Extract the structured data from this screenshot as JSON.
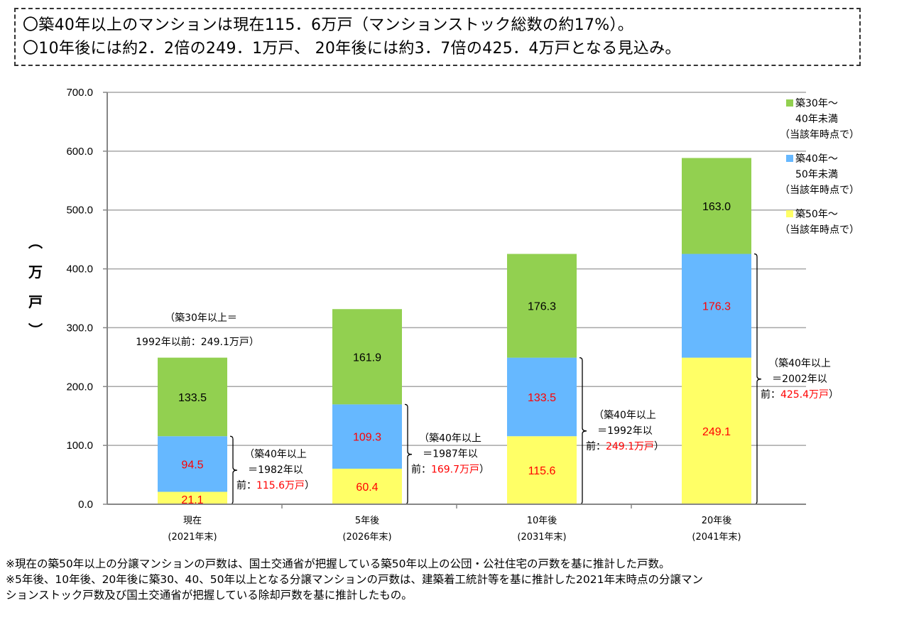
{
  "headline": {
    "line1": "〇築40年以上のマンションは現在115．6万戸（マンションストック総数の約17%）。",
    "line2": "〇10年後には約2．2倍の249．1万戸、 20年後には約3．7倍の425．4万戸となる見込み。"
  },
  "chart_data": {
    "type": "bar",
    "stacked": true,
    "ylabel": "（万戸）",
    "ylabel_chars": [
      "︵",
      "万",
      "戸",
      "︶"
    ],
    "ylim": [
      0,
      700
    ],
    "yticks": [
      "0.0",
      "100.0",
      "200.0",
      "300.0",
      "400.0",
      "500.0",
      "600.0",
      "700.0"
    ],
    "ytick_values": [
      0,
      100,
      200,
      300,
      400,
      500,
      600,
      700
    ],
    "grid": true,
    "categories": [
      {
        "line1": "現在",
        "line2": "(2021年末)"
      },
      {
        "line1": "5年後",
        "line2": "(2026年末)"
      },
      {
        "line1": "10年後",
        "line2": "(2031年末)"
      },
      {
        "line1": "20年後",
        "line2": "(2041年末)"
      }
    ],
    "series": [
      {
        "name": "築50年～（当該年時点で）",
        "color": "#ffff66",
        "label_color": "#ff0000",
        "values": [
          21.1,
          60.4,
          115.6,
          249.1
        ],
        "labels": [
          "21.1",
          "60.4",
          "115.6",
          "249.1"
        ]
      },
      {
        "name": "築40年～50年未満（当該年時点で）",
        "color": "#66b8ff",
        "label_color": "#ff0000",
        "values": [
          94.5,
          109.3,
          133.5,
          176.3
        ],
        "labels": [
          "94.5",
          "109.3",
          "133.5",
          "176.3"
        ]
      },
      {
        "name": "築30年～40年未満（当該年時点で）",
        "color": "#92d050",
        "label_color": "#000000",
        "values": [
          133.5,
          161.9,
          176.3,
          163.0
        ],
        "labels": [
          "133.5",
          "161.9",
          "176.3",
          "163.0"
        ]
      }
    ],
    "legend": {
      "placement": "top-right",
      "entries": [
        {
          "color": "#92d050",
          "lines": [
            "築30年～",
            "40年未満",
            "（当該年時点で）"
          ]
        },
        {
          "color": "#66b8ff",
          "lines": [
            "築40年～",
            "50年未満",
            "（当該年時点で）"
          ]
        },
        {
          "color": "#ffff66",
          "lines": [
            "築50年～",
            "（当該年時点で）"
          ]
        }
      ]
    },
    "annotations": {
      "top_note": {
        "line1": "（築30年以上＝",
        "line2": "1992年以前：249.1万戸）"
      },
      "brackets": [
        {
          "line1": "（築40年以上",
          "line2": "＝1982年以",
          "line3_prefix": "前：",
          "line3_value": "115.6万戸",
          "line3_suffix": "）"
        },
        {
          "line1": "（築40年以上",
          "line2": "＝1987年以",
          "line3_prefix": "前：",
          "line3_value": "169.7万戸",
          "line3_suffix": "）"
        },
        {
          "line1": "（築40年以上",
          "line2": "＝1992年以",
          "line3_prefix": "前：",
          "line3_value": "249.1万戸",
          "line3_suffix": "）"
        },
        {
          "line1": "（築40年以上",
          "line2": "＝2002年以",
          "line3_prefix": "前：",
          "line3_value": "425.4万戸",
          "line3_suffix": "）"
        }
      ]
    }
  },
  "notes": {
    "line1": "※現在の築50年以上の分譲マンションの戸数は、国土交通省が把握している築50年以上の公団・公社住宅の戸数を基に推計した戸数。",
    "line2": "※5年後、10年後、20年後に築30、40、50年以上となる分譲マンションの戸数は、建築着工統計等を基に推計した2021年末時点の分譲マン",
    "line3": "ションストック戸数及び国土交通省が把握している除却戸数を基に推計したもの。"
  }
}
